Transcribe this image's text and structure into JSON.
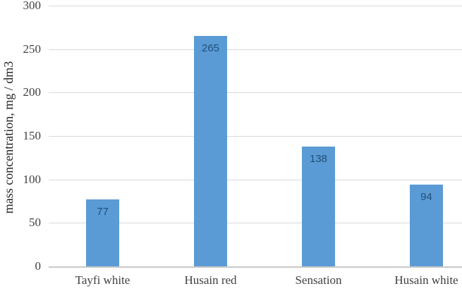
{
  "chart_data": {
    "type": "bar",
    "title": "",
    "xlabel": "",
    "ylabel": "mass concentration, mg / dm3",
    "categories": [
      "Tayfi white",
      "Husain red",
      "Sensation",
      "Husain white"
    ],
    "values": [
      77,
      265,
      138,
      94
    ],
    "data_labels": [
      "77",
      "265",
      "138",
      "94"
    ],
    "ylim": [
      0,
      300
    ],
    "ytick_interval": 50,
    "ytick_labels": [
      "300",
      "250",
      "200",
      "150",
      "100",
      "50",
      "0"
    ],
    "grid": "horizontal gridlines on",
    "legend": "none",
    "bar_color": "#5b9bd5",
    "data_label_color": "#1f4e79",
    "gridline_color": "#d9d9d9",
    "axis_line_color": "#c9c9c9",
    "tick_label_color": "#404040"
  }
}
